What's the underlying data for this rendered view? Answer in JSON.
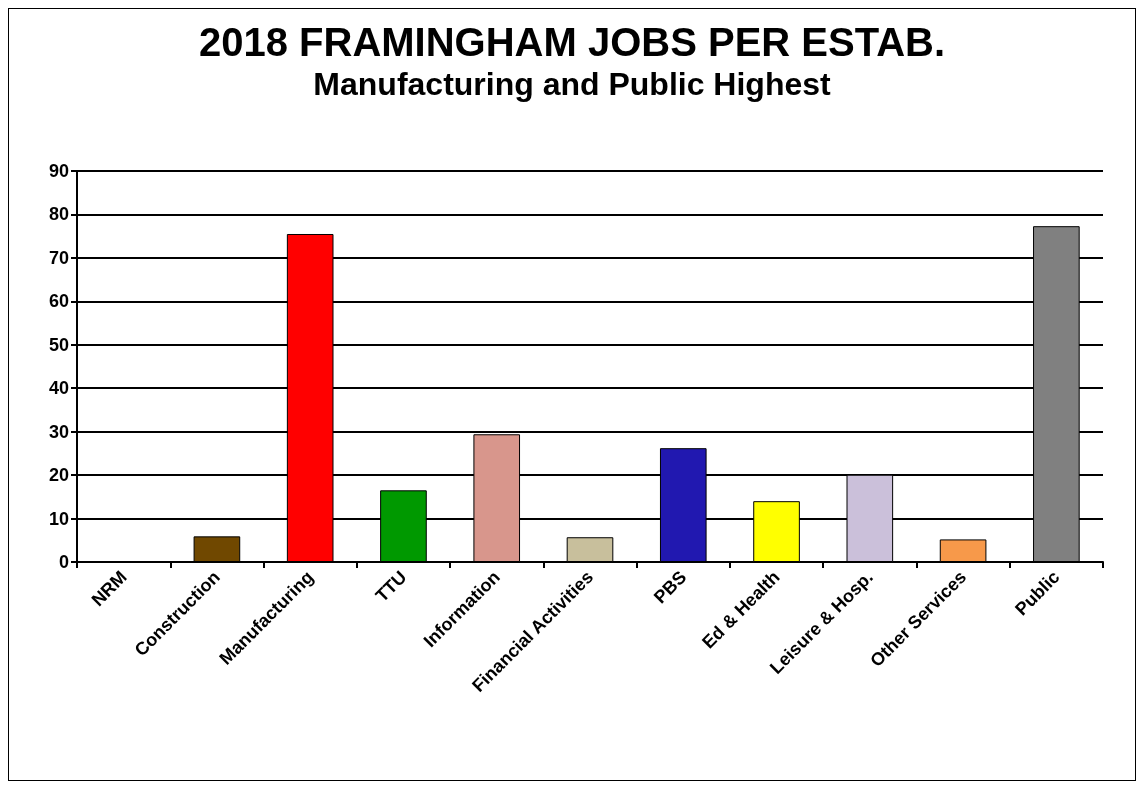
{
  "chart_data": {
    "type": "bar",
    "title": "2018 FRAMINGHAM JOBS PER ESTAB.",
    "subtitle": "Manufacturing and Public Highest",
    "categories": [
      "NRM",
      "Construction",
      "Manufacturing",
      "TTU",
      "Information",
      "Financial Activities",
      "PBS",
      "Ed & Health",
      "Leisure & Hosp.",
      "Other Services",
      "Public"
    ],
    "values": [
      0,
      5.9,
      75.5,
      16.5,
      29.4,
      5.7,
      26.2,
      14.0,
      20.1,
      5.2,
      77.3
    ],
    "colors": [
      "#000000",
      "#704800",
      "#ff0000",
      "#009900",
      "#d8968c",
      "#c8bf9c",
      "#2118b0",
      "#ffff00",
      "#cbc0da",
      "#f7994a",
      "#808080"
    ],
    "ylim": [
      0,
      90
    ],
    "yticks": [
      0,
      10,
      20,
      30,
      40,
      50,
      60,
      70,
      80,
      90
    ],
    "grid": "y"
  }
}
